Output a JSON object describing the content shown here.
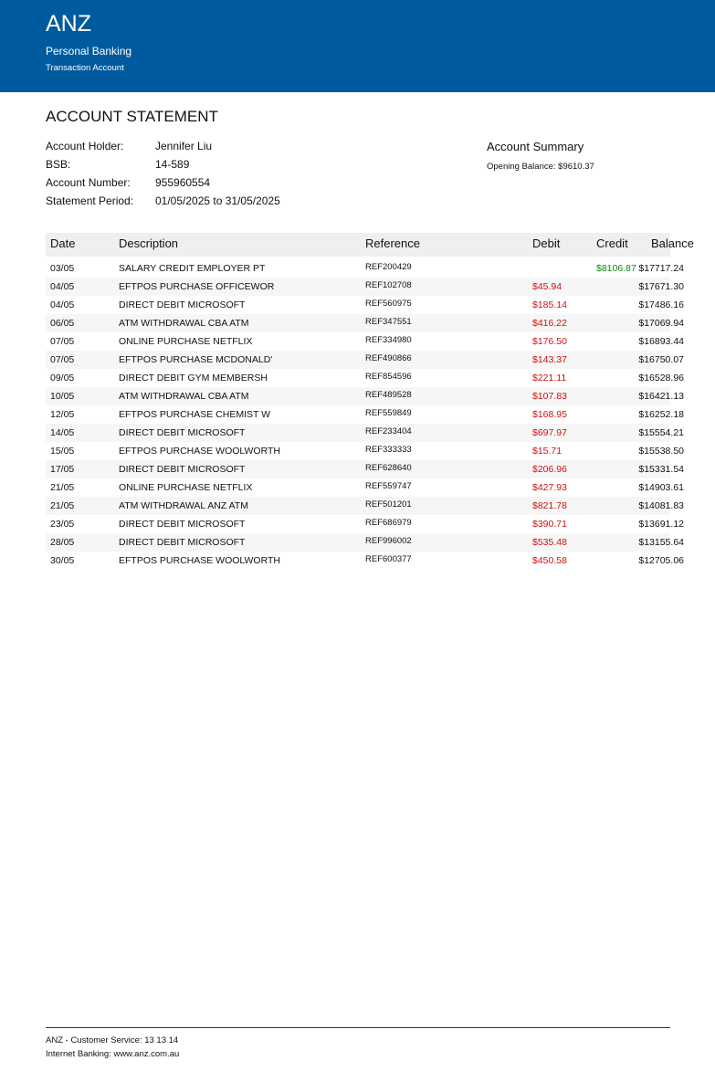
{
  "header": {
    "brand": "ANZ",
    "division": "Personal Banking",
    "account_type": "Transaction Account",
    "bg_color": "#005b9e"
  },
  "statement": {
    "title": "ACCOUNT STATEMENT",
    "fields": [
      {
        "label": "Account Holder:",
        "value": "Jennifer Liu"
      },
      {
        "label": "BSB:",
        "value": "14-589"
      },
      {
        "label": "Account Number:",
        "value": "955960554"
      },
      {
        "label": "Statement Period:",
        "value": "01/05/2025 to 31/05/2025"
      }
    ]
  },
  "summary": {
    "title": "Account Summary",
    "opening_balance": "Opening Balance: $9610.37"
  },
  "table": {
    "headers": {
      "date": "Date",
      "description": "Description",
      "reference": "Reference",
      "debit": "Debit",
      "credit": "Credit",
      "balance": "Balance"
    },
    "debit_color": "#cc1111",
    "credit_color": "#118811",
    "rows": [
      {
        "date": "03/05",
        "description": "SALARY CREDIT EMPLOYER PT",
        "reference": "REF200429",
        "debit": "",
        "credit": "$8106.87",
        "balance": "$17717.24"
      },
      {
        "date": "04/05",
        "description": "EFTPOS PURCHASE OFFICEWOR",
        "reference": "REF102708",
        "debit": "$45.94",
        "credit": "",
        "balance": "$17671.30"
      },
      {
        "date": "04/05",
        "description": "DIRECT DEBIT MICROSOFT",
        "reference": "REF560975",
        "debit": "$185.14",
        "credit": "",
        "balance": "$17486.16"
      },
      {
        "date": "06/05",
        "description": "ATM WITHDRAWAL CBA ATM",
        "reference": "REF347551",
        "debit": "$416.22",
        "credit": "",
        "balance": "$17069.94"
      },
      {
        "date": "07/05",
        "description": "ONLINE PURCHASE NETFLIX",
        "reference": "REF334980",
        "debit": "$176.50",
        "credit": "",
        "balance": "$16893.44"
      },
      {
        "date": "07/05",
        "description": "EFTPOS PURCHASE MCDONALD'",
        "reference": "REF490866",
        "debit": "$143.37",
        "credit": "",
        "balance": "$16750.07"
      },
      {
        "date": "09/05",
        "description": "DIRECT DEBIT GYM MEMBERSH",
        "reference": "REF854596",
        "debit": "$221.11",
        "credit": "",
        "balance": "$16528.96"
      },
      {
        "date": "10/05",
        "description": "ATM WITHDRAWAL CBA ATM",
        "reference": "REF489528",
        "debit": "$107.83",
        "credit": "",
        "balance": "$16421.13"
      },
      {
        "date": "12/05",
        "description": "EFTPOS PURCHASE CHEMIST W",
        "reference": "REF559849",
        "debit": "$168.95",
        "credit": "",
        "balance": "$16252.18"
      },
      {
        "date": "14/05",
        "description": "DIRECT DEBIT MICROSOFT",
        "reference": "REF233404",
        "debit": "$697.97",
        "credit": "",
        "balance": "$15554.21"
      },
      {
        "date": "15/05",
        "description": "EFTPOS PURCHASE WOOLWORTH",
        "reference": "REF333333",
        "debit": "$15.71",
        "credit": "",
        "balance": "$15538.50"
      },
      {
        "date": "17/05",
        "description": "DIRECT DEBIT MICROSOFT",
        "reference": "REF628640",
        "debit": "$206.96",
        "credit": "",
        "balance": "$15331.54"
      },
      {
        "date": "21/05",
        "description": "ONLINE PURCHASE NETFLIX",
        "reference": "REF559747",
        "debit": "$427.93",
        "credit": "",
        "balance": "$14903.61"
      },
      {
        "date": "21/05",
        "description": "ATM WITHDRAWAL ANZ ATM",
        "reference": "REF501201",
        "debit": "$821.78",
        "credit": "",
        "balance": "$14081.83"
      },
      {
        "date": "23/05",
        "description": "DIRECT DEBIT MICROSOFT",
        "reference": "REF686979",
        "debit": "$390.71",
        "credit": "",
        "balance": "$13691.12"
      },
      {
        "date": "28/05",
        "description": "DIRECT DEBIT MICROSOFT",
        "reference": "REF996002",
        "debit": "$535.48",
        "credit": "",
        "balance": "$13155.64"
      },
      {
        "date": "30/05",
        "description": "EFTPOS PURCHASE WOOLWORTH",
        "reference": "REF600377",
        "debit": "$450.58",
        "credit": "",
        "balance": "$12705.06"
      }
    ]
  },
  "footer": {
    "line1": "ANZ - Customer Service: 13 13 14",
    "line2": "Internet Banking: www.anz.com.au"
  }
}
